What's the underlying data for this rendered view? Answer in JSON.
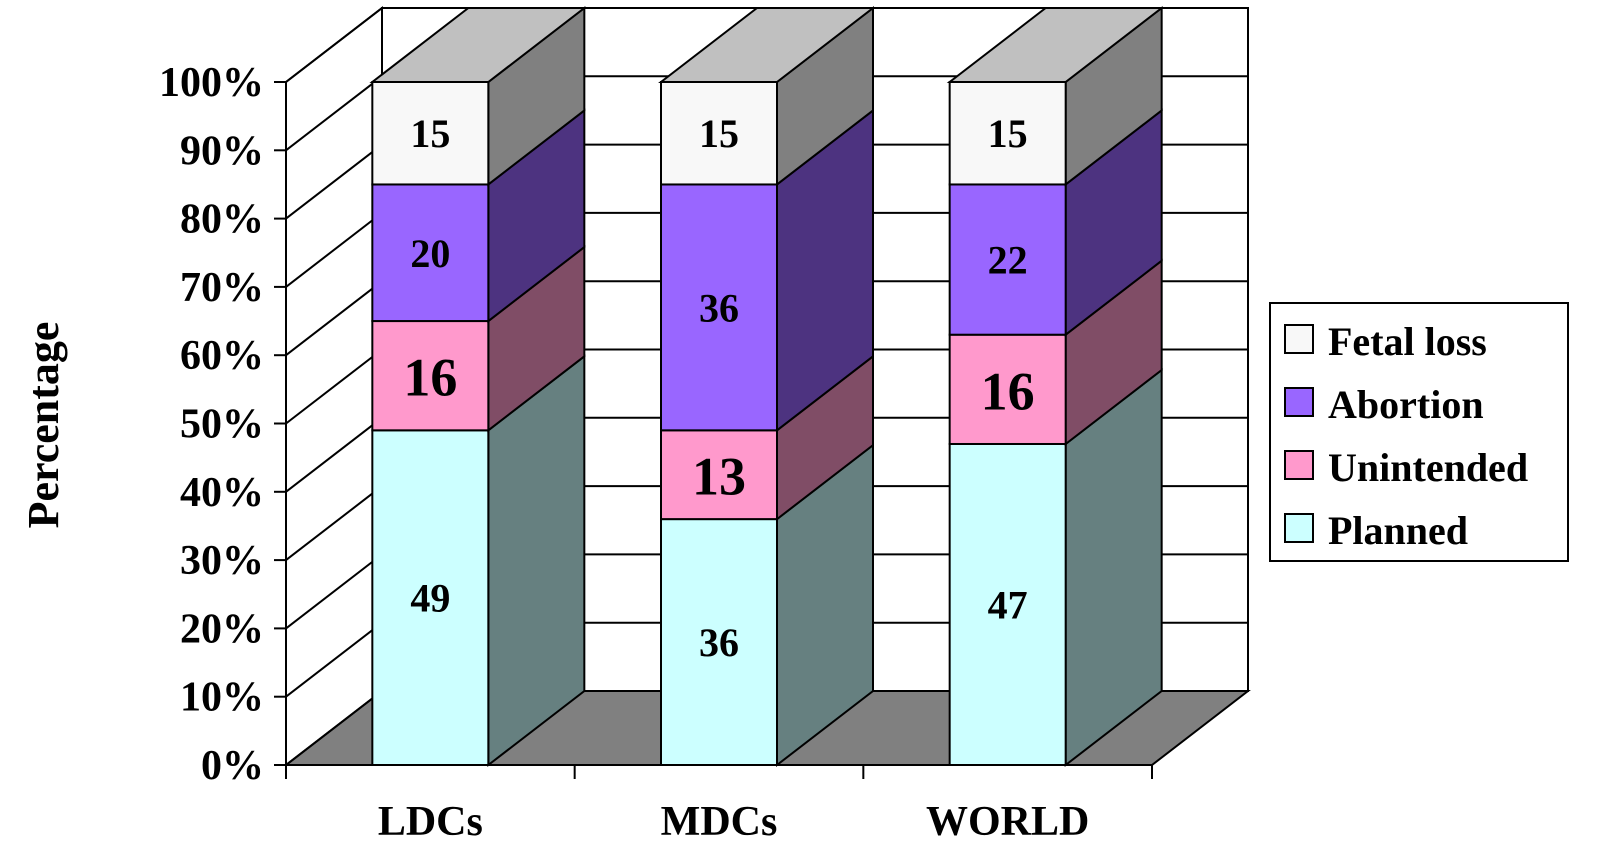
{
  "chart_data": {
    "type": "bar",
    "stacked": true,
    "three_d": true,
    "categories": [
      "LDCs",
      "MDCs",
      "WORLD"
    ],
    "series": [
      {
        "name": "Planned",
        "values": [
          49,
          36,
          47
        ],
        "color": "#ccffff",
        "side_color": "#668080"
      },
      {
        "name": "Unintended",
        "values": [
          16,
          13,
          16
        ],
        "color": "#ff99cc",
        "side_color": "#804d66"
      },
      {
        "name": "Abortion",
        "values": [
          20,
          36,
          22
        ],
        "color": "#9966ff",
        "side_color": "#4d3380"
      },
      {
        "name": "Fetal loss",
        "values": [
          15,
          15,
          15
        ],
        "color": "#f8f8f8",
        "side_color": "#808080"
      }
    ],
    "ylabel": "Percentage",
    "xlabel": "",
    "ylim": [
      0,
      100
    ],
    "yticks": [
      "0%",
      "10%",
      "20%",
      "30%",
      "40%",
      "50%",
      "60%",
      "70%",
      "80%",
      "90%",
      "100%"
    ],
    "grid": true,
    "legend": {
      "position": "right",
      "order": [
        "Fetal loss",
        "Abortion",
        "Unintended",
        "Planned"
      ]
    },
    "floor_color": "#808080",
    "top_color": "#c0c0c0"
  }
}
